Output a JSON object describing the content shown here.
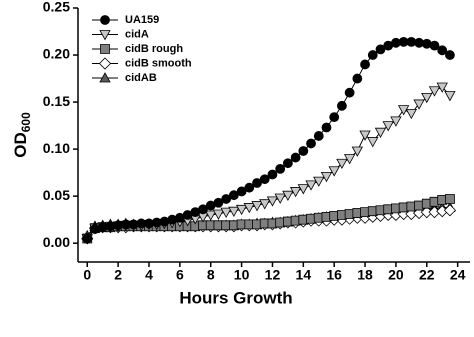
{
  "chart_data": {
    "type": "line",
    "x_label": "Hours Growth",
    "y_label": "OD",
    "y_label_sub": "600",
    "x": [
      0,
      0.5,
      1,
      1.5,
      2,
      2.5,
      3,
      3.5,
      4,
      4.5,
      5,
      5.5,
      6,
      6.5,
      7,
      7.5,
      8,
      8.5,
      9,
      9.5,
      10,
      10.5,
      11,
      11.5,
      12,
      12.5,
      13,
      13.5,
      14,
      14.5,
      15,
      15.5,
      16,
      16.5,
      17,
      17.5,
      18,
      18.5,
      19,
      19.5,
      20,
      20.5,
      21,
      21.5,
      22,
      22.5,
      23,
      23.5
    ],
    "series": [
      {
        "name": "UA159",
        "color": "#000000",
        "marker": "circle",
        "values": [
          0.005,
          0.015,
          0.017,
          0.018,
          0.019,
          0.02,
          0.02,
          0.021,
          0.021,
          0.022,
          0.023,
          0.025,
          0.027,
          0.03,
          0.033,
          0.036,
          0.04,
          0.043,
          0.047,
          0.051,
          0.055,
          0.059,
          0.064,
          0.068,
          0.073,
          0.079,
          0.085,
          0.091,
          0.098,
          0.106,
          0.114,
          0.123,
          0.134,
          0.146,
          0.16,
          0.175,
          0.19,
          0.2,
          0.206,
          0.21,
          0.213,
          0.214,
          0.214,
          0.213,
          0.212,
          0.21,
          0.205,
          0.2
        ]
      },
      {
        "name": "cidA",
        "color": "#c8c8c8",
        "marker": "triangle-down",
        "values": [
          0.005,
          0.016,
          0.017,
          0.018,
          0.018,
          0.019,
          0.019,
          0.019,
          0.02,
          0.02,
          0.021,
          0.022,
          0.023,
          0.024,
          0.026,
          0.028,
          0.03,
          0.031,
          0.033,
          0.034,
          0.036,
          0.038,
          0.04,
          0.042,
          0.045,
          0.048,
          0.051,
          0.055,
          0.058,
          0.062,
          0.066,
          0.071,
          0.077,
          0.085,
          0.09,
          0.098,
          0.115,
          0.108,
          0.118,
          0.125,
          0.13,
          0.142,
          0.138,
          0.148,
          0.155,
          0.162,
          0.166,
          0.157
        ]
      },
      {
        "name": "cidB rough",
        "color": "#7f7f7f",
        "marker": "square",
        "values": [
          0.005,
          0.016,
          0.017,
          0.017,
          0.018,
          0.018,
          0.018,
          0.018,
          0.018,
          0.018,
          0.018,
          0.018,
          0.018,
          0.018,
          0.018,
          0.019,
          0.019,
          0.019,
          0.019,
          0.019,
          0.02,
          0.02,
          0.02,
          0.021,
          0.021,
          0.022,
          0.023,
          0.024,
          0.025,
          0.026,
          0.027,
          0.028,
          0.029,
          0.03,
          0.031,
          0.032,
          0.033,
          0.034,
          0.035,
          0.036,
          0.037,
          0.038,
          0.039,
          0.04,
          0.042,
          0.044,
          0.046,
          0.047
        ]
      },
      {
        "name": "cidB smooth",
        "color": "#ffffff",
        "marker": "diamond",
        "values": [
          0.005,
          0.016,
          0.017,
          0.017,
          0.017,
          0.017,
          0.018,
          0.018,
          0.018,
          0.018,
          0.018,
          0.018,
          0.018,
          0.018,
          0.018,
          0.018,
          0.018,
          0.018,
          0.018,
          0.018,
          0.019,
          0.019,
          0.019,
          0.02,
          0.02,
          0.021,
          0.022,
          0.022,
          0.023,
          0.024,
          0.024,
          0.024,
          0.025,
          0.025,
          0.026,
          0.027,
          0.027,
          0.028,
          0.029,
          0.03,
          0.03,
          0.031,
          0.031,
          0.032,
          0.033,
          0.033,
          0.034,
          0.035
        ]
      },
      {
        "name": "cidAB",
        "color": "#595959",
        "marker": "triangle-up",
        "values": [
          0.008,
          0.018,
          0.019,
          0.02,
          0.02,
          0.021,
          0.02,
          0.02,
          0.02,
          0.02,
          0.019,
          0.019,
          0.019,
          0.019,
          0.019,
          0.019,
          0.019,
          0.019,
          0.019,
          0.019,
          0.02,
          0.02,
          0.021,
          0.021,
          0.022,
          0.022,
          0.023,
          0.024,
          0.025,
          0.026,
          0.027,
          0.028,
          0.028,
          0.029,
          0.03,
          0.031,
          0.031,
          0.032,
          0.033,
          0.034,
          0.034,
          0.035,
          0.035,
          0.036,
          0.037,
          0.037,
          0.038,
          0.038
        ]
      }
    ],
    "xlim": [
      -0.6,
      24.8
    ],
    "ylim": [
      -0.02,
      0.25
    ],
    "xticks": [
      0,
      2,
      4,
      6,
      8,
      10,
      12,
      14,
      16,
      18,
      20,
      22,
      24
    ],
    "yticks": [
      {
        "value": 0,
        "label": "0.00"
      },
      {
        "value": 0.05,
        "label": "0.05"
      },
      {
        "value": 0.1,
        "label": "0.10"
      },
      {
        "value": 0.15,
        "label": "0.15"
      },
      {
        "value": 0.2,
        "label": "0.20"
      },
      {
        "value": 0.25,
        "label": "0.25"
      }
    ],
    "legend": "upper-left"
  }
}
